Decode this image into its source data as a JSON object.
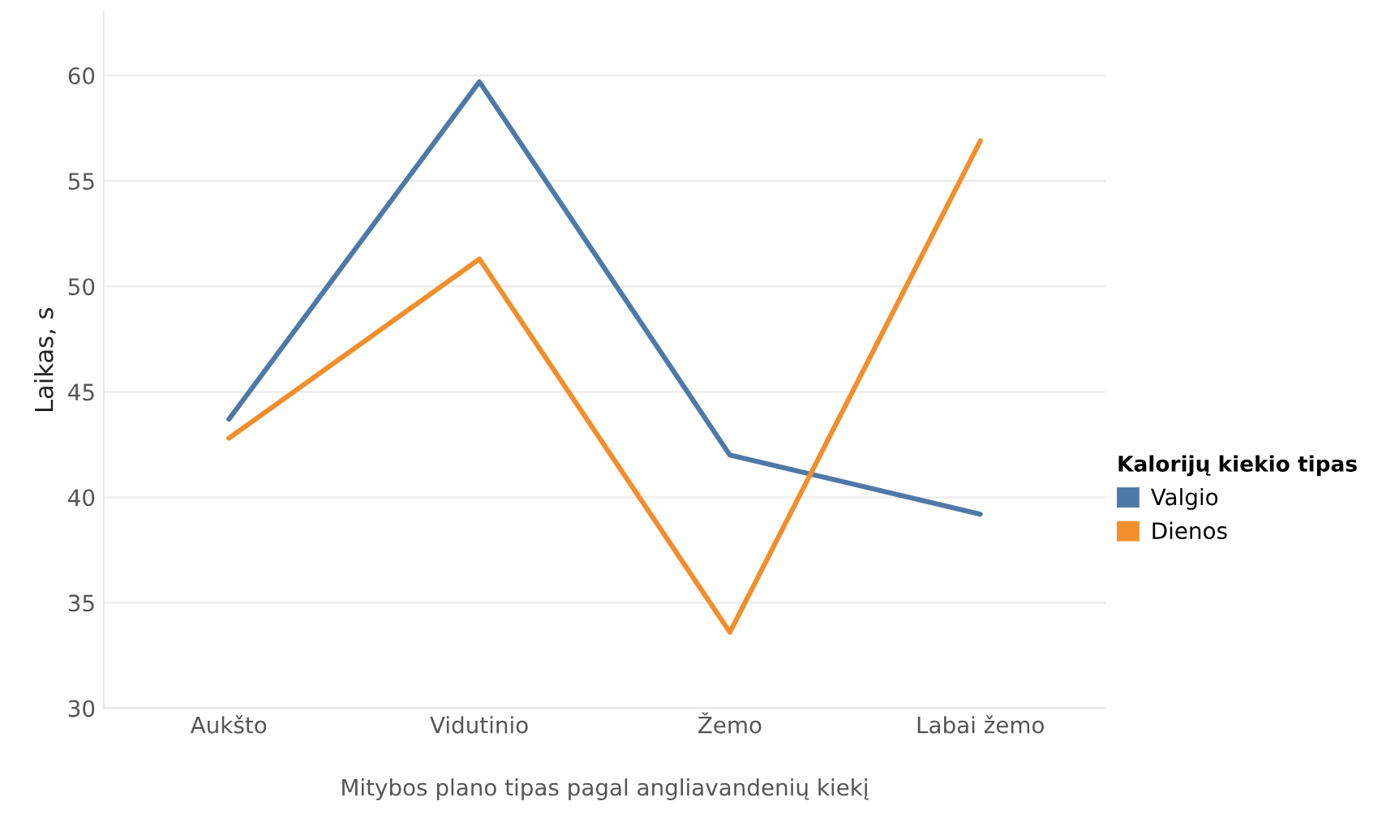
{
  "chart_data": {
    "type": "line",
    "xlabel": "Mitybos plano tipas pagal angliavandenių kiekį",
    "ylabel": "Laikas, s",
    "legend_title": "Kalorijų kiekio tipas",
    "categories": [
      "Aukšto",
      "Vidutinio",
      "Žemo",
      "Labai žemo"
    ],
    "series": [
      {
        "name": "Valgio",
        "color": "#4e79a7",
        "values": [
          43.7,
          59.7,
          42.0,
          39.2
        ]
      },
      {
        "name": "Dienos",
        "color": "#f28e2b",
        "values": [
          42.8,
          51.3,
          33.6,
          56.9
        ]
      }
    ],
    "ylim": [
      30,
      63
    ],
    "yticks": [
      30,
      35,
      40,
      45,
      50,
      55,
      60
    ],
    "grid": "y",
    "legend": "right",
    "marker": "none",
    "line_style": "solid"
  }
}
